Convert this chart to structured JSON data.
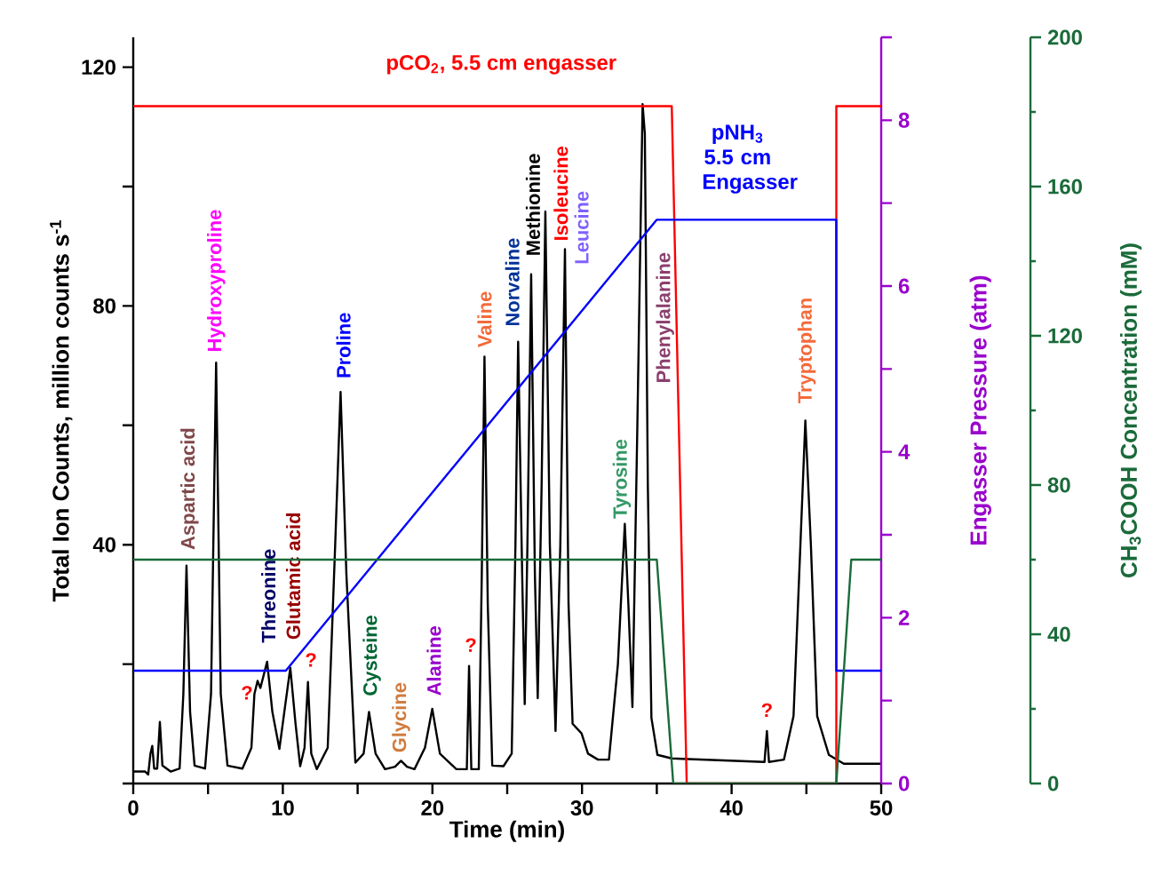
{
  "chart_data": {
    "type": "line",
    "xlabel": "Time (min)",
    "ylabel": "Total Ion Counts, million counts s$^{-1}$",
    "y2label": "Engasser Pressure (atm)",
    "y3label": "CH$_{3}$COOH Concentration (mM)",
    "xlim": [
      0,
      50
    ],
    "xticks": [
      0,
      {
        "value": 5,
        "label": null
      },
      10,
      {
        "value": 15,
        "label": null
      },
      20,
      {
        "value": 25,
        "label": null
      },
      30,
      {
        "value": 35,
        "label": null
      },
      40,
      {
        "value": 45,
        "label": null
      },
      50
    ],
    "ylim": [
      0,
      125
    ],
    "yticks": [
      {
        "value": 0,
        "label": null
      },
      {
        "value": 20,
        "label": null
      },
      40,
      {
        "value": 60,
        "label": null
      },
      80,
      {
        "value": 100,
        "label": null
      },
      120
    ],
    "y2lim": [
      0,
      9
    ],
    "y2ticks": [
      0,
      {
        "value": 1,
        "label": null
      },
      2,
      {
        "value": 3,
        "label": null
      },
      4,
      {
        "value": 5,
        "label": null
      },
      6,
      {
        "value": 7,
        "label": null
      },
      8,
      {
        "value": 9,
        "label": null
      }
    ],
    "y3lim": [
      0,
      200
    ],
    "y3ticks": [
      0,
      40,
      80,
      120,
      160,
      200
    ],
    "series": [
      {
        "color": "#000000",
        "x": [
          0,
          0.8,
          1.0,
          1.15,
          1.27,
          1.4,
          1.6,
          1.78,
          1.95,
          2.5,
          3.1,
          3.35,
          3.56,
          3.8,
          4.1,
          4.8,
          5.2,
          5.54,
          5.85,
          6.3,
          7.3,
          7.9,
          8.1,
          8.31,
          8.5,
          8.95,
          9.3,
          9.77,
          10.1,
          10.5,
          10.85,
          11.16,
          11.45,
          11.68,
          11.9,
          12.27,
          13.0,
          13.5,
          13.86,
          14.25,
          14.85,
          15.4,
          15.76,
          16.2,
          16.83,
          17.5,
          17.9,
          18.3,
          18.8,
          19.5,
          19.99,
          20.5,
          21.6,
          22.3,
          22.45,
          22.6,
          23.1,
          23.3,
          23.48,
          23.7,
          24.0,
          24.75,
          25.3,
          25.55,
          25.73,
          26.0,
          26.17,
          26.35,
          26.6,
          26.85,
          27.04,
          27.3,
          27.55,
          27.85,
          28.23,
          28.55,
          28.86,
          29.1,
          29.37,
          29.97,
          30.4,
          31.07,
          31.8,
          32.4,
          32.86,
          33.1,
          33.37,
          33.7,
          34.05,
          34.2,
          34.4,
          34.64,
          35.04,
          36,
          42.2,
          42.36,
          42.5,
          43.5,
          44.14,
          44.6,
          44.93,
          45.3,
          45.72,
          46.5,
          47.5,
          50
        ],
        "values": [
          2,
          2,
          1.5,
          5,
          6.3,
          2.5,
          2.5,
          10.3,
          3,
          2,
          2.5,
          15,
          36.5,
          12,
          3,
          2.5,
          15,
          70.5,
          15,
          3,
          2.5,
          6,
          15,
          17.2,
          16,
          20.4,
          12,
          5.8,
          12,
          19.4,
          10,
          2.9,
          6,
          17,
          5,
          2.4,
          6,
          40,
          65.6,
          35,
          3.5,
          5,
          12,
          5,
          2.4,
          2.8,
          3.8,
          2.8,
          2.4,
          6,
          12.5,
          5,
          2.4,
          2.4,
          19.7,
          2.4,
          2.4,
          35,
          71.5,
          30,
          3,
          2.9,
          5,
          40,
          74,
          35,
          13.3,
          40,
          85.3,
          35,
          14.3,
          50,
          95.8,
          40,
          8.8,
          40,
          89.5,
          30,
          10,
          8.4,
          5,
          4,
          4,
          20,
          43.5,
          30,
          12.8,
          60,
          113.8,
          108.8,
          50,
          11,
          4.8,
          4.2,
          3.6,
          8.8,
          3.6,
          4,
          11.3,
          40,
          60.8,
          40,
          11.3,
          4.8,
          3.3,
          3.3
        ]
      },
      {
        "name": "pCO$_{2}$, 5.5 cm engasser",
        "color": "#ff0000",
        "axis": "y2",
        "x": [
          0,
          36.0,
          37.0,
          47.0,
          47.0,
          50
        ],
        "values": [
          8.17,
          8.17,
          0,
          0,
          8.17,
          8.17
        ]
      },
      {
        "name": "pNH$_{3}$ 5.5 cm Engasser",
        "color": "#0000ff",
        "axis": "y2",
        "x": [
          0,
          10.2,
          35.0,
          47.0,
          47.0,
          50
        ],
        "values": [
          1.36,
          1.36,
          6.8,
          6.8,
          1.36,
          1.36
        ]
      },
      {
        "color": "#1a6b3a",
        "axis": "y3",
        "x": [
          0,
          35.0,
          36.1,
          47.0,
          48.0,
          50
        ],
        "values": [
          60,
          60,
          0,
          0,
          60,
          60
        ]
      }
    ],
    "annotations": [
      {
        "text": "Aspartic acid",
        "x": 3.56,
        "y": 36.5
      },
      {
        "text": "Hydroxyproline",
        "x": 5.54,
        "y": 70.5
      },
      {
        "text": "?",
        "x": 8.31,
        "y": 17.2
      },
      {
        "text": "Threonine",
        "x": 8.95,
        "y": 20.4
      },
      {
        "text": "Glutamic acid",
        "x": 10.5,
        "y": 19.4
      },
      {
        "text": "?",
        "x": 11.68,
        "y": 17
      },
      {
        "text": "Proline",
        "x": 13.86,
        "y": 65.6
      },
      {
        "text": "Cysteine",
        "x": 15.76,
        "y": 12
      },
      {
        "text": "Glycine",
        "x": 17.9,
        "y": 3.8
      },
      {
        "text": "Alanine",
        "x": 19.99,
        "y": 12.5
      },
      {
        "text": "?",
        "x": 22.45,
        "y": 19.7
      },
      {
        "text": "Valine",
        "x": 23.48,
        "y": 71.5
      },
      {
        "text": "Norvaline",
        "x": 25.73,
        "y": 74
      },
      {
        "text": "Methionine",
        "x": 26.6,
        "y": 85.3
      },
      {
        "text": "Isoleucine",
        "x": 27.55,
        "y": 95.8
      },
      {
        "text": "Leucine",
        "x": 28.86,
        "y": 89.5
      },
      {
        "text": "Tyrosine",
        "x": 32.86,
        "y": 43.5
      },
      "Phenylalanine",
      {
        "text": "?",
        "x": 42.36,
        "y": 8.8
      },
      {
        "text": "Tryptophan",
        "x": 44.93,
        "y": 60.8
      }
    ]
  }
}
